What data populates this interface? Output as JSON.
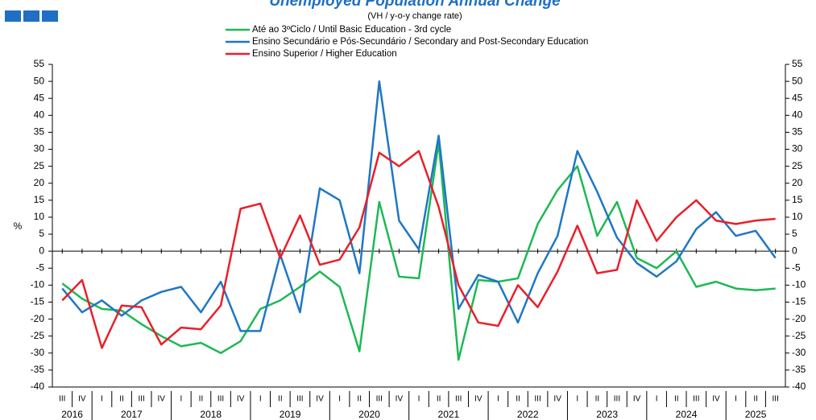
{
  "chart_data": {
    "type": "line",
    "title": "Unemployed Population Annual Change",
    "subtitle": "(VH / y-o-y change rate)",
    "y_label": "%",
    "categories": [
      "III",
      "IV",
      "I",
      "II",
      "III",
      "IV",
      "I",
      "II",
      "III",
      "IV",
      "I",
      "II",
      "III",
      "IV",
      "I",
      "II",
      "III",
      "IV",
      "I",
      "II",
      "III",
      "IV",
      "I",
      "II",
      "III",
      "IV",
      "I",
      "II",
      "III",
      "IV",
      "I",
      "II",
      "III",
      "IV",
      "I",
      "II",
      "III"
    ],
    "years": [
      "2016",
      "2017",
      "2018",
      "2019",
      "2020",
      "2021",
      "2022",
      "2023",
      "2024",
      "2025"
    ],
    "series": [
      {
        "name": "Até ao 3ºCiclo / Until Basic Education - 3rd cycle",
        "color": "#1db954",
        "values": [
          -9.5,
          -14,
          -17,
          -17.5,
          -21.5,
          -25,
          -28,
          -27,
          -30,
          -26.5,
          -17,
          -14.5,
          -10.5,
          -6,
          -10.5,
          -29.5,
          14.5,
          -7.5,
          -8,
          32,
          -32,
          -8.5,
          -9,
          -8,
          8,
          18,
          25,
          4.5,
          14.5,
          -2,
          -5,
          0,
          -10.5,
          -9,
          -11,
          -11.5,
          -11
        ]
      },
      {
        "name": "Ensino Secundário e Pós-Secundário / Secondary and Post-Secondary Education",
        "color": "#1f77c4",
        "values": [
          -11,
          -18,
          -14.5,
          -19,
          -14.5,
          -12,
          -10.5,
          -18,
          -9,
          -23.5,
          -23.5,
          -1,
          -18,
          18.5,
          15,
          -6.5,
          50,
          9,
          0.5,
          34,
          -17,
          -7,
          -9,
          -21,
          -6.5,
          4.5,
          29.5,
          17.5,
          4,
          -3.5,
          -7.5,
          -3,
          6.5,
          11.5,
          4.5,
          6,
          -2
        ]
      },
      {
        "name": "Ensino Superior / Higher Education",
        "color": "#e8202a",
        "values": [
          -14.5,
          -8.5,
          -28.5,
          -16,
          -16.5,
          -27.5,
          -22.5,
          -23,
          -16,
          12.5,
          14,
          -2,
          10.5,
          -4,
          -2.5,
          7,
          29,
          25,
          29.5,
          13,
          -10,
          -21,
          -22,
          -10,
          -16.5,
          -6,
          7.5,
          -6.5,
          -5.5,
          15,
          3,
          10,
          15,
          9,
          8,
          9,
          9.5
        ]
      }
    ],
    "ylim": [
      -40,
      55
    ],
    "yticks": [
      -40,
      -35,
      -30,
      -25,
      -20,
      -15,
      -10,
      -5,
      0,
      5,
      10,
      15,
      20,
      25,
      30,
      35,
      40,
      45,
      50,
      55
    ],
    "y2lim": [
      -40,
      55
    ],
    "y2ticks": [
      -40,
      -35,
      -30,
      -25,
      -20,
      -15,
      -10,
      -5,
      0,
      5,
      10,
      15,
      20,
      25,
      30,
      35,
      40,
      45,
      50,
      55
    ],
    "grid": false
  }
}
